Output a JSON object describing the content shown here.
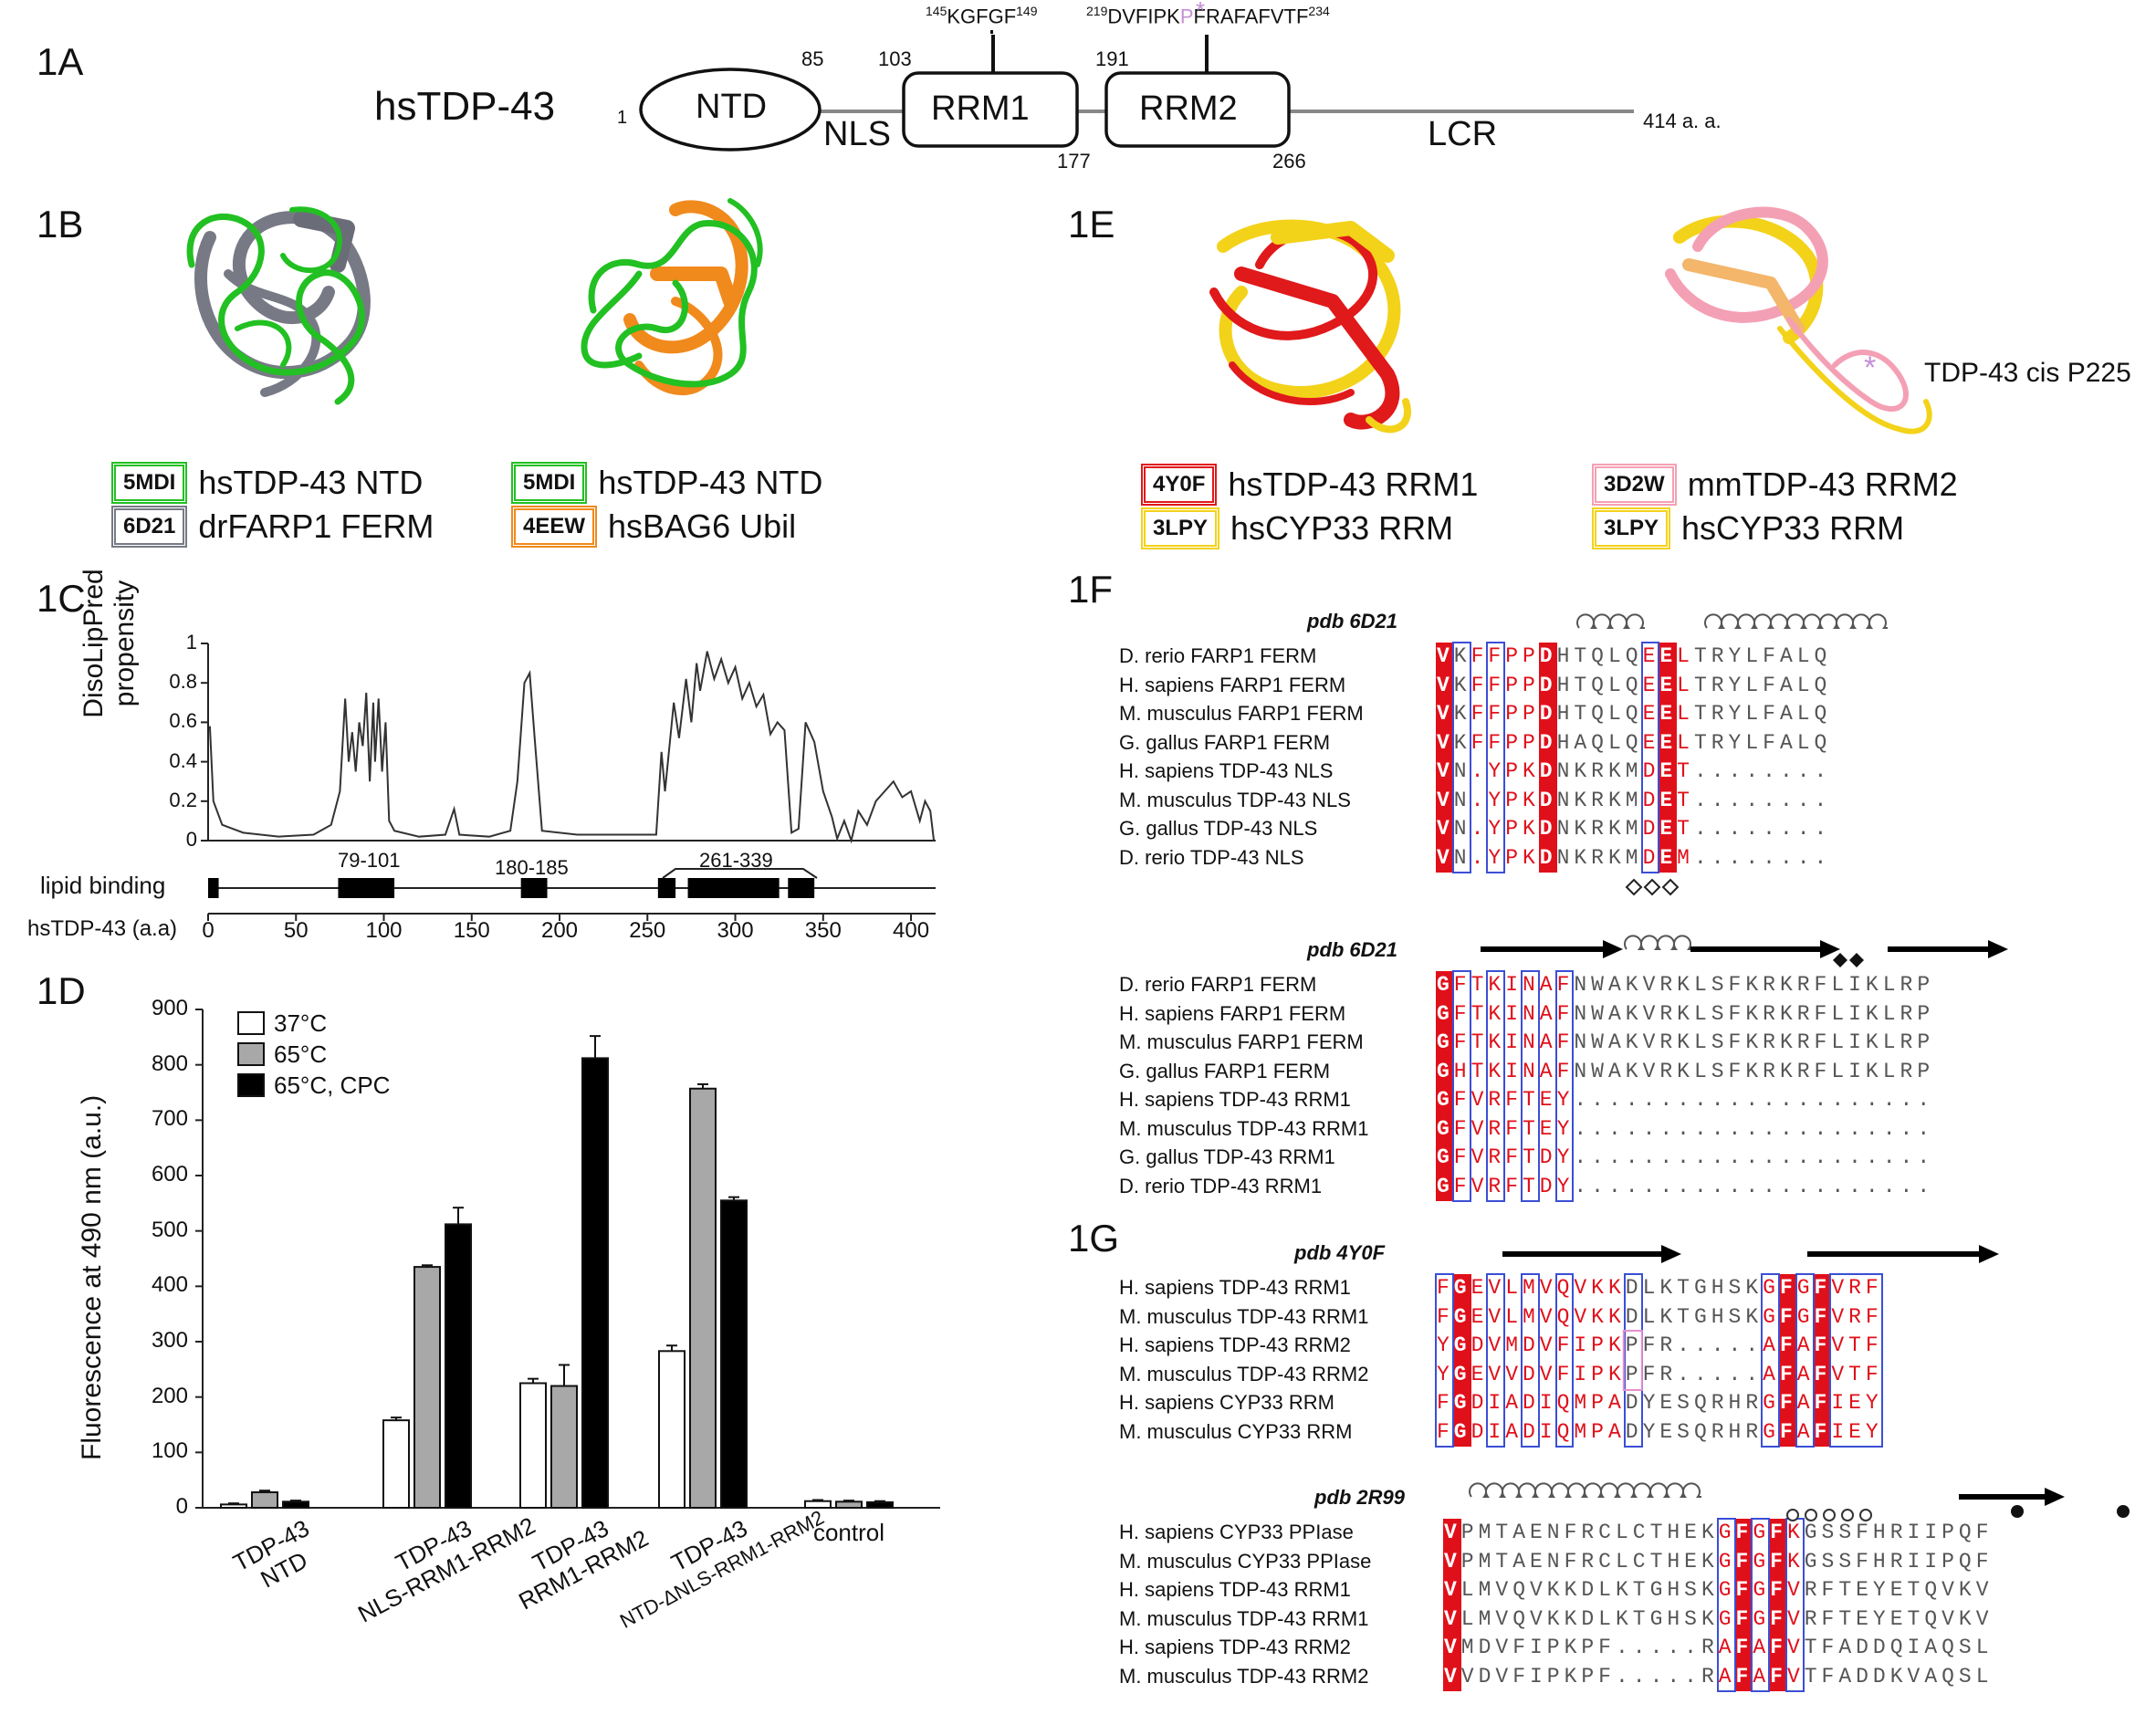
{
  "panels": {
    "a": "1A",
    "b": "1B",
    "c": "1C",
    "d": "1D",
    "e": "1E",
    "f": "1F",
    "g": "1G"
  },
  "domain_diagram": {
    "protein": "hsTDP-43",
    "start": "1",
    "end": "414 a. a.",
    "ntd": "NTD",
    "nls": "NLS",
    "rrm1": "RRM1",
    "rrm2": "RRM2",
    "lcr": "LCR",
    "n85": "85",
    "n103": "103",
    "n177": "177",
    "n191": "191",
    "n266": "266",
    "motif1": {
      "pre": "145",
      "seq": "KGFGF",
      "post": "149"
    },
    "motif2": {
      "pre": "219",
      "seq_a": "DVFIPK",
      "seq_p": "P",
      "seq_b": "FRAFAFVTF",
      "post": "234"
    }
  },
  "panel_b": {
    "left": [
      {
        "code": "5MDI",
        "label": "hsTDP-43 NTD",
        "color": "#22c022"
      },
      {
        "code": "6D21",
        "label": "drFARP1 FERM",
        "color": "#777a85"
      }
    ],
    "right": [
      {
        "code": "5MDI",
        "label": "hsTDP-43 NTD",
        "color": "#22c022"
      },
      {
        "code": "4EEW",
        "label": "hsBAG6 Ubil",
        "color": "#f08a1c"
      }
    ]
  },
  "panel_e": {
    "left": [
      {
        "code": "4Y0F",
        "label": "hsTDP-43 RRM1",
        "color": "#e0191b"
      },
      {
        "code": "3LPY",
        "label": "hsCYP33 RRM",
        "color": "#f3d21a"
      }
    ],
    "right": [
      {
        "code": "3D2W",
        "label": "mmTDP-43 RRM2",
        "color": "#f4a0b4"
      },
      {
        "code": "3LPY",
        "label": "hsCYP33 RRM",
        "color": "#f3d21a"
      }
    ],
    "annotation": "TDP-43 cis P225"
  },
  "chart_c": {
    "type": "line",
    "ylabel_1": "DisoLipPred",
    "ylabel_2": "propensity",
    "yticks": [
      "0",
      "0.2",
      "0.4",
      "0.6",
      "0.8",
      "1"
    ],
    "xticks": [
      "0",
      "50",
      "100",
      "150",
      "200",
      "250",
      "300",
      "350",
      "400"
    ],
    "xlabel": "hsTDP-43 (a.a)",
    "track_label": "lipid binding",
    "region1": "79-101",
    "region2": "180-185",
    "region3": "261-339"
  },
  "chart_data": {
    "type": "bar",
    "ylabel": "Fluorescence at 490 nm (a.u.)",
    "ylim": [
      0,
      900
    ],
    "yticks": [
      "0",
      "100",
      "200",
      "300",
      "400",
      "500",
      "600",
      "700",
      "800",
      "900"
    ],
    "categories": [
      {
        "line1": "TDP-43",
        "line2": "NTD"
      },
      {
        "line1": "TDP-43",
        "line2": "NLS-RRM1-RRM2"
      },
      {
        "line1": "TDP-43",
        "line2": "RRM1-RRM2"
      },
      {
        "line1": "TDP-43",
        "line2": "NTD-ΔNLS-RRM1-RRM2"
      },
      {
        "line1": "control",
        "line2": ""
      }
    ],
    "series": [
      {
        "name": "37°C",
        "color": "#ffffff",
        "values": [
          6,
          158,
          225,
          283,
          12
        ],
        "err": [
          2,
          5,
          8,
          10,
          2
        ]
      },
      {
        "name": "65°C",
        "color": "#a8a8a8",
        "values": [
          28,
          435,
          220,
          757,
          11
        ],
        "err": [
          3,
          3,
          38,
          8,
          2
        ]
      },
      {
        "name": "65°C, CPC",
        "color": "#000000",
        "values": [
          11,
          512,
          812,
          555,
          10
        ],
        "err": [
          2,
          30,
          40,
          6,
          2
        ]
      }
    ]
  },
  "aln_f1": {
    "title": "pdb 6D21",
    "rows": [
      {
        "name": "D. rerio FARP1 FERM",
        "seq": "VKFFPPDHTQLQEELTRYLFALQ"
      },
      {
        "name": "H. sapiens FARP1 FERM",
        "seq": "VKFFPPDHTQLQEELTRYLFALQ"
      },
      {
        "name": "M. musculus FARP1 FERM",
        "seq": "VKFFPPDHTQLQEELTRYLFALQ"
      },
      {
        "name": "G. gallus FARP1 FERM",
        "seq": "VKFFPPDHAQLQEELTRYLFALQ"
      },
      {
        "name": "H. sapiens TDP-43 NLS",
        "seq": "VN.YPKDNKRKMDET........"
      },
      {
        "name": "M. musculus TDP-43 NLS",
        "seq": "VN.YPKDNKRKMDET........"
      },
      {
        "name": "G. gallus TDP-43 NLS",
        "seq": "VN.YPKDNKRKMDET........"
      },
      {
        "name": "D. rerio TDP-43 NLS",
        "seq": "VN.YPKDNKRKMDEM........"
      }
    ]
  },
  "aln_f2": {
    "title": "pdb 6D21",
    "rows": [
      {
        "name": "D. rerio FARP1 FERM",
        "seq": "GFTKINAFNWAKVRKLSFKRKRFLIKLRP"
      },
      {
        "name": "H. sapiens FARP1 FERM",
        "seq": "GFTKINAFNWAKVRKLSFKRKRFLIKLRP"
      },
      {
        "name": "M. musculus FARP1 FERM",
        "seq": "GFTKINAFNWAKVRKLSFKRKRFLIKLRP"
      },
      {
        "name": "G. gallus FARP1 FERM",
        "seq": "GHTKINAFNWAKVRKLSFKRKRFLIKLRP"
      },
      {
        "name": "H. sapiens TDP-43 RRM1",
        "seq": "GFVRFTEY....................."
      },
      {
        "name": "M. musculus TDP-43 RRM1",
        "seq": "GFVRFTEY....................."
      },
      {
        "name": "G. gallus TDP-43 RRM1",
        "seq": "GFVRFTDY....................."
      },
      {
        "name": "D. rerio TDP-43 RRM1",
        "seq": "GFVRFTDY....................."
      }
    ]
  },
  "aln_g1": {
    "title": "pdb 4Y0F",
    "rows": [
      {
        "name": "H. sapiens TDP-43 RRM1",
        "seq": "FGEVLMVQVKKDLKTGHSKGFGFVRF"
      },
      {
        "name": "M. musculus TDP-43 RRM1",
        "seq": "FGEVLMVQVKKDLKTGHSKGFGFVRF"
      },
      {
        "name": "H. sapiens TDP-43 RRM2",
        "seq": "YGDVMDVFIPKPFR.....AFAFVTF"
      },
      {
        "name": "M. musculus TDP-43 RRM2",
        "seq": "YGEVVDVFIPKPFR.....AFAFVTF"
      },
      {
        "name": "H. sapiens CYP33 RRM",
        "seq": "FGDIADIQMPADYESQRHRGFAFIEY"
      },
      {
        "name": "M. musculus CYP33 RRM",
        "seq": "FGDIADIQMPADYESQRHRGFAFIEY"
      }
    ]
  },
  "aln_g2": {
    "title": "pdb 2R99",
    "rows": [
      {
        "name": "H. sapiens CYP33 PPIase",
        "seq": "VPMTAENFRCLCTHEKGFGFKGSSFHRIIPQF"
      },
      {
        "name": "M. musculus CYP33 PPIase",
        "seq": "VPMTAENFRCLCTHEKGFGFKGSSFHRIIPQF"
      },
      {
        "name": "H. sapiens TDP-43 RRM1",
        "seq": "VLMVQVKKDLKTGHSKGFGFVRFTEYETQVKV"
      },
      {
        "name": "M. musculus TDP-43 RRM1",
        "seq": "VLMVQVKKDLKTGHSKGFGFVRFTEYETQVKV"
      },
      {
        "name": "H. sapiens TDP-43 RRM2",
        "seq": "VMDVFIPKPF.....RAFAFVTFADDQIAQSL"
      },
      {
        "name": "M. musculus TDP-43 RRM2",
        "seq": "VVDVFIPKPF.....RAFAFVTFADDKVAQSL"
      }
    ]
  },
  "colors": {
    "conserved": "#e0101a",
    "similar": "#e0101a",
    "box": "#3b4fd6",
    "pink": "#e58fd0"
  }
}
